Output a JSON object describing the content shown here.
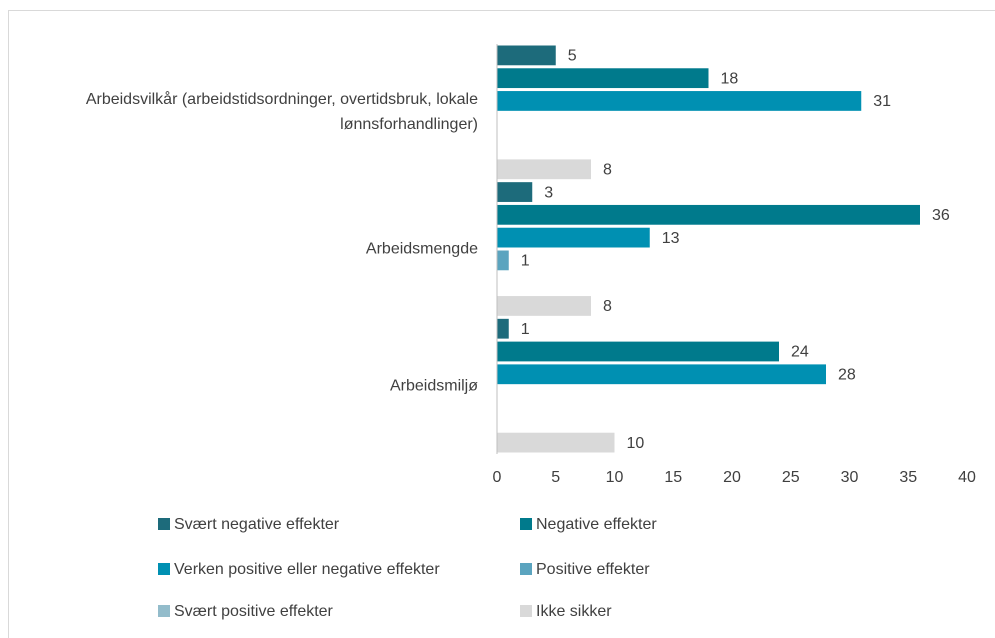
{
  "chart_data": {
    "type": "bar",
    "orientation": "horizontal",
    "categories": [
      "Arbeidsvilkår (arbeidstidsordninger, overtidsbruk, lokale lønnsforhandlinger)",
      "Arbeidsmengde",
      "Arbeidsmiljø"
    ],
    "series": [
      {
        "name": "Svært negative effekter",
        "color": "#1d6b7b",
        "values": [
          5,
          3,
          1
        ]
      },
      {
        "name": "Negative effekter",
        "color": "#007a8c",
        "values": [
          18,
          36,
          24
        ]
      },
      {
        "name": "Verken positive eller negative effekter",
        "color": "#0090b2",
        "values": [
          31,
          13,
          28
        ]
      },
      {
        "name": "Positive effekter",
        "color": "#5ba4bf",
        "values": [
          null,
          1,
          null
        ]
      },
      {
        "name": "Svært positive effekter",
        "color": "#93bccb",
        "values": [
          null,
          null,
          null
        ]
      },
      {
        "name": "Ikke sikker",
        "color": "#d9d9d9",
        "values": [
          8,
          8,
          10
        ]
      }
    ],
    "xlim": [
      0,
      40
    ],
    "xticks": [
      0,
      5,
      10,
      15,
      20,
      25,
      30,
      35,
      40
    ],
    "grid": false,
    "legend": "bottom"
  }
}
